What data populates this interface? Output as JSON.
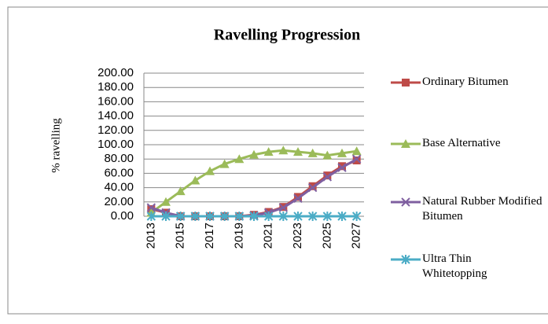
{
  "chart_data": {
    "type": "line",
    "title": "Ravelling Progression",
    "ylabel": "% ravelling",
    "categories": [
      "2013",
      null,
      "2015",
      null,
      "2017",
      null,
      "2019",
      null,
      "2021",
      null,
      "2023",
      null,
      "2025",
      null,
      "2027"
    ],
    "series": [
      {
        "name": "Ordinary Bitumen",
        "color": "#be4b48",
        "marker": "square",
        "values": [
          10,
          5,
          0,
          0,
          0,
          0,
          0,
          2,
          6,
          13,
          27,
          42,
          57,
          70,
          78
        ]
      },
      {
        "name": "Base Alternative",
        "color": "#9bbb59",
        "marker": "triangle",
        "values": [
          5,
          20,
          35,
          50,
          63,
          73,
          80,
          86,
          90,
          92,
          90,
          88,
          85,
          88,
          91
        ]
      },
      {
        "name": "Natural Rubber Modified Bitumen",
        "color": "#7f5fa0",
        "marker": "x",
        "values": [
          12,
          5,
          0,
          0,
          0,
          0,
          0,
          1,
          5,
          12,
          25,
          40,
          55,
          68,
          80
        ]
      },
      {
        "name": "Ultra Thin Whitetopping",
        "color": "#4bacc6",
        "marker": "asterisk",
        "values": [
          0,
          0,
          0,
          0,
          0,
          0,
          0,
          0,
          0,
          0,
          0,
          0,
          0,
          0,
          0
        ]
      }
    ],
    "ylim": [
      0,
      200
    ],
    "yticks": [
      {
        "value": 0,
        "label": "0.00"
      },
      {
        "value": 20,
        "label": "20.00"
      },
      {
        "value": 40,
        "label": "40.00"
      },
      {
        "value": 60,
        "label": "60.00"
      },
      {
        "value": 80,
        "label": "80.00"
      },
      {
        "value": 100,
        "label": "100.00"
      },
      {
        "value": 120,
        "label": "120.00"
      },
      {
        "value": 140,
        "label": "140.00"
      },
      {
        "value": 160,
        "label": "160.00"
      },
      {
        "value": 180,
        "label": "180.00"
      },
      {
        "value": 200,
        "label": "200.00"
      }
    ],
    "grid": true,
    "legend": "right"
  }
}
